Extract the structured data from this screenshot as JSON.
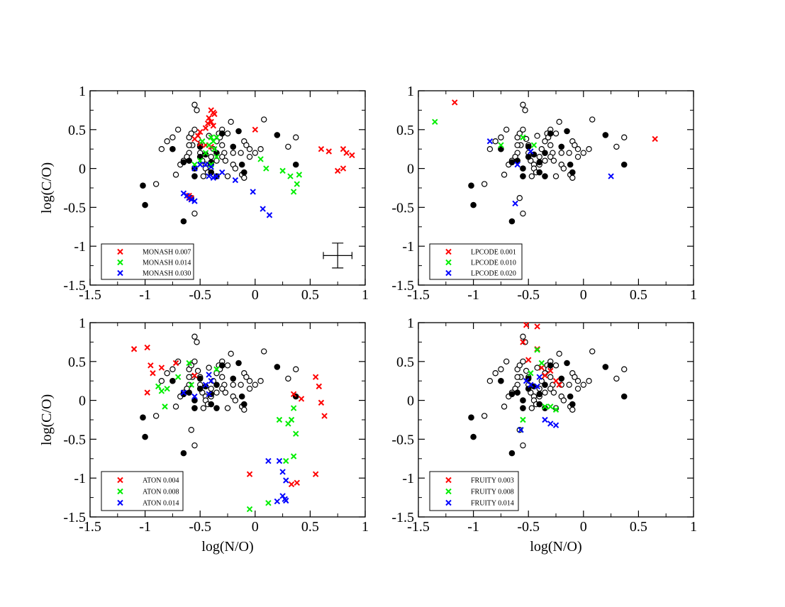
{
  "colors": {
    "red": "#ff0000",
    "green": "#00ee00",
    "blue": "#0000ff",
    "black": "#000000"
  },
  "shared": {
    "xlabel": "log(N/O)",
    "ylabel": "log(C/O)",
    "xlim": [
      -1.5,
      1.0
    ],
    "ylim": [
      -1.5,
      1.0
    ],
    "xticks": [
      "-1.5",
      "-1",
      "-0.5",
      "0",
      "0.5",
      "1"
    ],
    "yticks": [
      "-1.5",
      "-1",
      "-0.5",
      "0",
      "0.5",
      "1"
    ],
    "error_bar": {
      "x": 0.75,
      "y": -1.12,
      "xerr": 0.13,
      "yerr": 0.16
    },
    "observed_open": [
      [
        -0.55,
        0.82
      ],
      [
        -0.53,
        0.75
      ],
      [
        -0.8,
        0.35
      ],
      [
        -0.75,
        0.4
      ],
      [
        -0.7,
        0.5
      ],
      [
        -0.6,
        0.4
      ],
      [
        -0.57,
        0.3
      ],
      [
        -0.6,
        0.2
      ],
      [
        -0.62,
        0.15
      ],
      [
        -0.65,
        0.1
      ],
      [
        -0.68,
        0.05
      ],
      [
        -0.58,
        0.45
      ],
      [
        -0.55,
        0.5
      ],
      [
        -0.52,
        0.38
      ],
      [
        -0.5,
        0.3
      ],
      [
        -0.5,
        0.2
      ],
      [
        -0.48,
        0.1
      ],
      [
        -0.45,
        0.05
      ],
      [
        -0.45,
        0.0
      ],
      [
        -0.43,
        -0.05
      ],
      [
        -0.4,
        0.15
      ],
      [
        -0.38,
        0.25
      ],
      [
        -0.35,
        0.35
      ],
      [
        -0.33,
        0.45
      ],
      [
        -0.3,
        0.5
      ],
      [
        -0.32,
        0.4
      ],
      [
        -0.3,
        0.3
      ],
      [
        -0.28,
        0.2
      ],
      [
        -0.3,
        0.15
      ],
      [
        -0.27,
        0.1
      ],
      [
        -0.25,
        0.45
      ],
      [
        -0.22,
        0.6
      ],
      [
        -0.2,
        0.05
      ],
      [
        -0.18,
        0.0
      ],
      [
        -0.13,
        0.2
      ],
      [
        -0.1,
        0.35
      ],
      [
        -0.08,
        0.3
      ],
      [
        -0.05,
        0.25
      ],
      [
        -0.12,
        -0.08
      ],
      [
        -0.1,
        -0.12
      ],
      [
        0.08,
        0.63
      ],
      [
        0.3,
        0.28
      ],
      [
        0.37,
        0.4
      ],
      [
        -0.72,
        -0.08
      ],
      [
        -0.9,
        -0.2
      ],
      [
        -0.58,
        -0.38
      ],
      [
        -0.55,
        -0.58
      ],
      [
        -0.05,
        0.15
      ],
      [
        0.0,
        0.2
      ],
      [
        0.05,
        0.25
      ],
      [
        -0.2,
        0.2
      ],
      [
        -0.4,
        0.05
      ],
      [
        -0.35,
        0.1
      ],
      [
        -0.6,
        0.3
      ],
      [
        -0.42,
        0.42
      ],
      [
        -0.47,
        -0.1
      ],
      [
        -0.62,
        0.15
      ],
      [
        -0.85,
        0.25
      ],
      [
        -0.25,
        -0.1
      ],
      [
        -0.55,
        -0.1
      ]
    ],
    "observed_filled": [
      [
        -1.02,
        -0.22
      ],
      [
        -1.0,
        -0.47
      ],
      [
        -0.75,
        0.25
      ],
      [
        -0.65,
        0.08
      ],
      [
        -0.6,
        0.1
      ],
      [
        -0.55,
        0.0
      ],
      [
        -0.5,
        0.15
      ],
      [
        -0.5,
        0.28
      ],
      [
        -0.45,
        0.18
      ],
      [
        -0.4,
        -0.05
      ],
      [
        -0.35,
        -0.1
      ],
      [
        -0.55,
        -0.1
      ],
      [
        -0.4,
        0.08
      ],
      [
        -0.35,
        0.2
      ],
      [
        -0.3,
        0.45
      ],
      [
        -0.2,
        0.28
      ],
      [
        -0.12,
        0.05
      ],
      [
        -0.1,
        -0.05
      ],
      [
        0.2,
        0.43
      ],
      [
        0.37,
        0.05
      ],
      [
        -0.65,
        -0.68
      ],
      [
        -0.15,
        0.48
      ]
    ]
  },
  "chart_data": [
    {
      "type": "scatter",
      "title": "",
      "xlabel": "",
      "ylabel": "log(C/O)",
      "xlim": [
        -1.5,
        1.0
      ],
      "ylim": [
        -1.5,
        1.0
      ],
      "legend_position": "bottom-left",
      "show_error_bar": true,
      "series": [
        {
          "name": "MONASH 0.007",
          "color": "red",
          "marker": "x",
          "points": [
            [
              -0.4,
              0.75
            ],
            [
              -0.38,
              0.72
            ],
            [
              -0.37,
              0.7
            ],
            [
              -0.42,
              0.65
            ],
            [
              -0.4,
              0.6
            ],
            [
              -0.38,
              0.55
            ],
            [
              -0.43,
              0.58
            ],
            [
              -0.45,
              0.52
            ],
            [
              -0.5,
              0.47
            ],
            [
              -0.52,
              0.42
            ],
            [
              -0.55,
              0.38
            ],
            [
              -0.5,
              0.32
            ],
            [
              -0.45,
              0.3
            ],
            [
              -0.4,
              0.28
            ],
            [
              0.0,
              0.5
            ],
            [
              0.6,
              0.25
            ],
            [
              0.67,
              0.22
            ],
            [
              0.8,
              0.25
            ],
            [
              0.83,
              0.2
            ],
            [
              0.88,
              0.17
            ],
            [
              0.75,
              -0.03
            ],
            [
              0.8,
              0.0
            ],
            [
              -0.6,
              -0.35
            ],
            [
              -0.58,
              -0.38
            ]
          ]
        },
        {
          "name": "MONASH 0.014",
          "color": "green",
          "marker": "x",
          "points": [
            [
              -0.4,
              0.4
            ],
            [
              -0.38,
              0.35
            ],
            [
              -0.42,
              0.3
            ],
            [
              -0.37,
              0.25
            ],
            [
              -0.45,
              0.2
            ],
            [
              -0.35,
              0.15
            ],
            [
              -0.5,
              0.1
            ],
            [
              -0.55,
              0.05
            ],
            [
              -0.4,
              0.05
            ],
            [
              0.05,
              0.12
            ],
            [
              0.1,
              0.0
            ],
            [
              0.25,
              -0.03
            ],
            [
              0.32,
              -0.1
            ],
            [
              0.4,
              -0.08
            ],
            [
              0.38,
              -0.2
            ],
            [
              0.35,
              -0.3
            ],
            [
              -0.35,
              0.4
            ],
            [
              -0.48,
              0.35
            ]
          ]
        },
        {
          "name": "MONASH 0.030",
          "color": "blue",
          "marker": "x",
          "points": [
            [
              -0.45,
              0.05
            ],
            [
              -0.4,
              0.02
            ],
            [
              -0.42,
              -0.1
            ],
            [
              -0.38,
              -0.12
            ],
            [
              -0.35,
              -0.1
            ],
            [
              -0.3,
              -0.05
            ],
            [
              -0.5,
              0.05
            ],
            [
              -0.55,
              0.0
            ],
            [
              -0.62,
              -0.35
            ],
            [
              -0.6,
              -0.38
            ],
            [
              -0.58,
              -0.4
            ],
            [
              -0.55,
              -0.42
            ],
            [
              -0.65,
              -0.32
            ],
            [
              -0.18,
              -0.15
            ],
            [
              -0.02,
              -0.3
            ],
            [
              0.07,
              -0.52
            ],
            [
              0.13,
              -0.6
            ]
          ]
        }
      ]
    },
    {
      "type": "scatter",
      "title": "",
      "xlabel": "",
      "ylabel": "",
      "xlim": [
        -1.5,
        1.0
      ],
      "ylim": [
        -1.5,
        1.0
      ],
      "legend_position": "bottom-left",
      "show_error_bar": false,
      "series": [
        {
          "name": "LPCODE 0.001",
          "color": "red",
          "marker": "x",
          "points": [
            [
              -1.17,
              0.85
            ],
            [
              0.65,
              0.38
            ]
          ]
        },
        {
          "name": "LPCODE 0.010",
          "color": "green",
          "marker": "x",
          "points": [
            [
              -1.35,
              0.6
            ],
            [
              -0.75,
              0.3
            ],
            [
              -0.55,
              0.4
            ],
            [
              -0.45,
              0.3
            ]
          ]
        },
        {
          "name": "LPCODE 0.020",
          "color": "blue",
          "marker": "x",
          "points": [
            [
              -0.85,
              0.35
            ],
            [
              -0.62,
              -0.45
            ],
            [
              -0.6,
              0.05
            ],
            [
              -0.48,
              0.22
            ],
            [
              0.25,
              -0.1
            ]
          ]
        }
      ]
    },
    {
      "type": "scatter",
      "title": "",
      "xlabel": "log(N/O)",
      "ylabel": "log(C/O)",
      "xlim": [
        -1.5,
        1.0
      ],
      "ylim": [
        -1.5,
        1.0
      ],
      "legend_position": "bottom-left",
      "show_error_bar": false,
      "series": [
        {
          "name": "ATON 0.004",
          "color": "red",
          "marker": "x",
          "points": [
            [
              -1.1,
              0.66
            ],
            [
              -0.98,
              0.68
            ],
            [
              -0.95,
              0.45
            ],
            [
              -0.93,
              0.35
            ],
            [
              -0.85,
              0.42
            ],
            [
              -0.98,
              0.1
            ],
            [
              -0.72,
              0.48
            ],
            [
              -0.55,
              0.32
            ],
            [
              -0.05,
              -0.95
            ],
            [
              0.35,
              0.08
            ],
            [
              0.42,
              0.02
            ],
            [
              0.55,
              0.3
            ],
            [
              0.58,
              0.18
            ],
            [
              0.6,
              -0.03
            ],
            [
              0.63,
              -0.2
            ],
            [
              0.33,
              -1.08
            ],
            [
              0.38,
              -1.06
            ],
            [
              0.55,
              -0.95
            ]
          ]
        },
        {
          "name": "ATON 0.008",
          "color": "green",
          "marker": "x",
          "points": [
            [
              -0.88,
              0.18
            ],
            [
              -0.85,
              0.12
            ],
            [
              -0.8,
              0.15
            ],
            [
              -0.82,
              -0.08
            ],
            [
              -0.7,
              0.3
            ],
            [
              -0.6,
              0.48
            ],
            [
              -0.58,
              0.2
            ],
            [
              -0.35,
              0.4
            ],
            [
              0.22,
              -0.25
            ],
            [
              0.3,
              -0.3
            ],
            [
              0.33,
              -0.25
            ],
            [
              0.35,
              -0.1
            ],
            [
              0.37,
              -0.43
            ],
            [
              0.35,
              -0.72
            ],
            [
              0.28,
              -0.78
            ],
            [
              -0.05,
              -1.4
            ],
            [
              0.12,
              -1.32
            ]
          ]
        },
        {
          "name": "ATON 0.014",
          "color": "blue",
          "marker": "x",
          "points": [
            [
              -0.65,
              0.1
            ],
            [
              -0.55,
              0.05
            ],
            [
              -0.42,
              0.33
            ],
            [
              -0.4,
              0.25
            ],
            [
              -0.45,
              0.2
            ],
            [
              -0.42,
              0.08
            ],
            [
              0.12,
              -0.78
            ],
            [
              0.22,
              -0.78
            ],
            [
              0.25,
              -0.92
            ],
            [
              0.28,
              -1.03
            ],
            [
              0.2,
              -1.3
            ],
            [
              0.25,
              -1.23
            ],
            [
              0.27,
              -1.27
            ],
            [
              0.28,
              -1.29
            ]
          ]
        }
      ]
    },
    {
      "type": "scatter",
      "title": "",
      "xlabel": "log(N/O)",
      "ylabel": "",
      "xlim": [
        -1.5,
        1.0
      ],
      "ylim": [
        -1.5,
        1.0
      ],
      "legend_position": "bottom-left",
      "show_error_bar": false,
      "series": [
        {
          "name": "FRUITY 0.003",
          "color": "red",
          "marker": "x",
          "points": [
            [
              -0.52,
              0.97
            ],
            [
              -0.42,
              0.95
            ],
            [
              -0.55,
              0.75
            ],
            [
              -0.42,
              0.66
            ],
            [
              -0.5,
              0.52
            ],
            [
              -0.38,
              0.42
            ],
            [
              -0.3,
              0.38
            ],
            [
              -0.25,
              0.25
            ],
            [
              -0.22,
              0.2
            ],
            [
              -0.35,
              0.32
            ]
          ]
        },
        {
          "name": "FRUITY 0.008",
          "color": "green",
          "marker": "x",
          "points": [
            [
              -0.42,
              0.65
            ],
            [
              -0.38,
              0.48
            ],
            [
              -0.48,
              0.35
            ],
            [
              -0.35,
              -0.08
            ],
            [
              -0.3,
              -0.08
            ],
            [
              -0.25,
              -0.12
            ],
            [
              -0.55,
              -0.25
            ],
            [
              -0.57,
              -0.38
            ]
          ]
        },
        {
          "name": "FRUITY 0.014",
          "color": "blue",
          "marker": "x",
          "points": [
            [
              -0.52,
              0.25
            ],
            [
              -0.48,
              0.2
            ],
            [
              -0.4,
              0.3
            ],
            [
              -0.42,
              0.18
            ],
            [
              -0.35,
              -0.25
            ],
            [
              -0.3,
              -0.3
            ],
            [
              -0.25,
              -0.32
            ],
            [
              -0.57,
              -0.38
            ]
          ]
        }
      ]
    }
  ]
}
